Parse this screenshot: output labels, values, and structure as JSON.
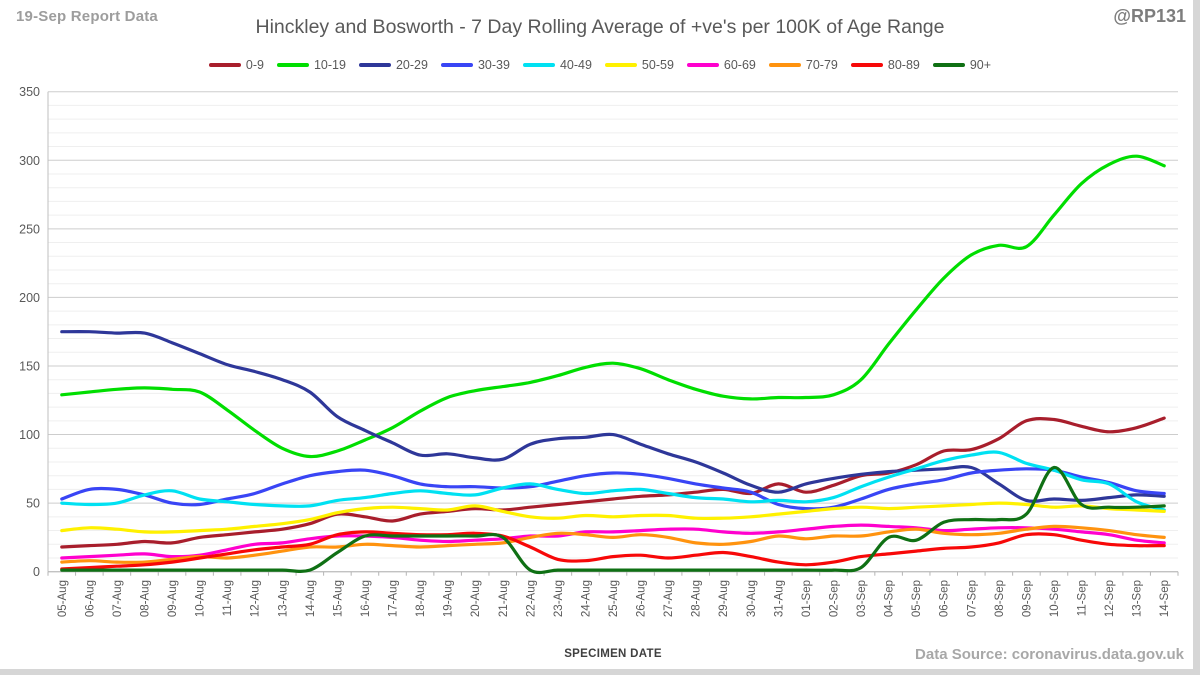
{
  "header": {
    "report_label": "19-Sep Report Data",
    "title": "Hinckley and Bosworth - 7 Day Rolling Average of +ve's per 100K of Age Range",
    "handle": "@RP131"
  },
  "footer": {
    "xaxis_title": "SPECIMEN DATE",
    "data_source": "Data Source: coronavirus.data.gov.uk"
  },
  "chart_data": {
    "type": "line",
    "title": "Hinckley and Bosworth - 7 Day Rolling Average of +ve's per 100K of Age Range",
    "xlabel": "SPECIMEN DATE",
    "ylabel": "",
    "ylim": [
      0,
      350
    ],
    "y_major_step": 50,
    "y_minor_step": 10,
    "grid": "horizontal major+minor",
    "legend_position": "top",
    "x": [
      "05-Aug",
      "06-Aug",
      "07-Aug",
      "08-Aug",
      "09-Aug",
      "10-Aug",
      "11-Aug",
      "12-Aug",
      "13-Aug",
      "14-Aug",
      "15-Aug",
      "16-Aug",
      "17-Aug",
      "18-Aug",
      "19-Aug",
      "20-Aug",
      "21-Aug",
      "22-Aug",
      "23-Aug",
      "24-Aug",
      "25-Aug",
      "26-Aug",
      "27-Aug",
      "28-Aug",
      "29-Aug",
      "30-Aug",
      "31-Aug",
      "01-Sep",
      "02-Sep",
      "03-Sep",
      "04-Sep",
      "05-Sep",
      "06-Sep",
      "07-Sep",
      "08-Sep",
      "09-Sep",
      "10-Sep",
      "11-Sep",
      "12-Sep",
      "13-Sep",
      "14-Sep"
    ],
    "series": [
      {
        "name": "0-9",
        "color": "#A81E2C",
        "values": [
          18,
          19,
          20,
          22,
          21,
          25,
          27,
          29,
          31,
          35,
          42,
          40,
          37,
          42,
          44,
          46,
          45,
          47,
          49,
          51,
          53,
          55,
          56,
          58,
          60,
          57,
          64,
          58,
          63,
          70,
          72,
          78,
          88,
          89,
          97,
          110,
          111,
          106,
          102,
          105,
          112
        ]
      },
      {
        "name": "10-19",
        "color": "#00DE00",
        "values": [
          129,
          131,
          133,
          134,
          133,
          131,
          118,
          103,
          90,
          84,
          88,
          96,
          105,
          117,
          127,
          132,
          135,
          138,
          143,
          149,
          152,
          148,
          140,
          133,
          128,
          126,
          127,
          127,
          129,
          140,
          166,
          191,
          214,
          231,
          238,
          237,
          260,
          283,
          297,
          303,
          296
        ]
      },
      {
        "name": "20-29",
        "color": "#2E3799",
        "values": [
          175,
          175,
          174,
          174,
          167,
          159,
          151,
          146,
          140,
          131,
          113,
          103,
          94,
          85,
          86,
          83,
          82,
          93,
          97,
          98,
          100,
          93,
          86,
          80,
          72,
          63,
          58,
          64,
          68,
          71,
          73,
          74,
          75,
          76,
          64,
          52,
          53,
          52,
          54,
          56,
          55
        ]
      },
      {
        "name": "30-39",
        "color": "#3945F5",
        "values": [
          53,
          60,
          60,
          56,
          50,
          49,
          53,
          57,
          64,
          70,
          73,
          74,
          70,
          64,
          62,
          62,
          61,
          62,
          66,
          70,
          72,
          71,
          68,
          64,
          61,
          58,
          49,
          46,
          47,
          53,
          60,
          64,
          67,
          72,
          74,
          75,
          74,
          69,
          65,
          59,
          57
        ]
      },
      {
        "name": "40-49",
        "color": "#00E1F2",
        "values": [
          50,
          49,
          50,
          56,
          59,
          53,
          51,
          49,
          48,
          48,
          52,
          54,
          57,
          59,
          57,
          56,
          61,
          64,
          60,
          57,
          59,
          60,
          57,
          54,
          53,
          51,
          52,
          51,
          54,
          62,
          69,
          75,
          81,
          85,
          87,
          79,
          74,
          67,
          64,
          51,
          45
        ]
      },
      {
        "name": "50-59",
        "color": "#FFF100",
        "values": [
          30,
          32,
          31,
          29,
          29,
          30,
          31,
          33,
          35,
          38,
          43,
          46,
          47,
          46,
          45,
          48,
          44,
          40,
          39,
          41,
          40,
          41,
          41,
          39,
          39,
          40,
          42,
          44,
          46,
          47,
          46,
          47,
          48,
          49,
          50,
          49,
          47,
          48,
          46,
          45,
          44
        ]
      },
      {
        "name": "60-69",
        "color": "#FF00CE",
        "values": [
          10,
          11,
          12,
          13,
          11,
          12,
          16,
          20,
          21,
          24,
          26,
          26,
          25,
          23,
          22,
          23,
          24,
          26,
          26,
          29,
          29,
          30,
          31,
          31,
          29,
          28,
          29,
          31,
          33,
          34,
          33,
          32,
          30,
          31,
          32,
          32,
          31,
          29,
          27,
          23,
          21
        ]
      },
      {
        "name": "70-79",
        "color": "#FF930F",
        "values": [
          7,
          8,
          7,
          7,
          9,
          11,
          10,
          12,
          15,
          18,
          18,
          20,
          19,
          18,
          19,
          20,
          21,
          25,
          28,
          27,
          25,
          27,
          25,
          21,
          20,
          22,
          26,
          24,
          26,
          26,
          29,
          31,
          28,
          27,
          28,
          31,
          33,
          32,
          30,
          27,
          25
        ]
      },
      {
        "name": "80-89",
        "color": "#F70808",
        "values": [
          2,
          3,
          4,
          5,
          7,
          10,
          13,
          16,
          18,
          20,
          27,
          29,
          28,
          27,
          27,
          28,
          26,
          18,
          9,
          8,
          11,
          12,
          10,
          12,
          14,
          11,
          7,
          5,
          7,
          11,
          13,
          15,
          17,
          18,
          21,
          27,
          27,
          23,
          20,
          19,
          19
        ]
      },
      {
        "name": "90+",
        "color": "#0F7014",
        "values": [
          0,
          0,
          0,
          0,
          0,
          0,
          0,
          0,
          0,
          0,
          14,
          26,
          26,
          26,
          26,
          26,
          25,
          0,
          0,
          0,
          0,
          0,
          0,
          0,
          0,
          0,
          0,
          0,
          0,
          3,
          25,
          23,
          36,
          38,
          38,
          42,
          76,
          49,
          47,
          47,
          48
        ]
      }
    ]
  }
}
